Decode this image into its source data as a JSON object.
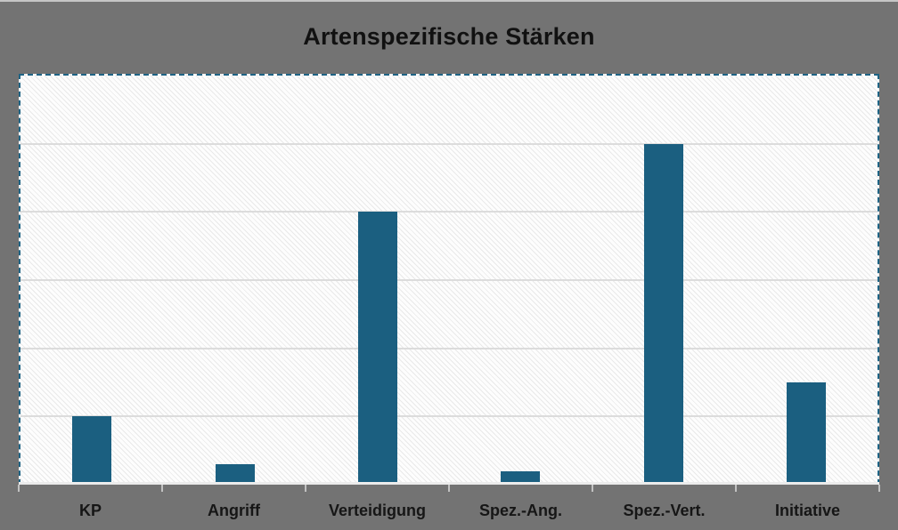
{
  "chart": {
    "title": "Artenspezifische Stärken"
  },
  "chart_data": {
    "type": "bar",
    "title": "Artenspezifische Stärken",
    "categories": [
      "KP",
      "Angriff",
      "Verteidigung",
      "Spez.-Ang.",
      "Spez.-Vert.",
      "Initiative"
    ],
    "values": [
      50,
      15,
      200,
      10,
      250,
      75
    ],
    "xlabel": "",
    "ylabel": "",
    "ylim": [
      0,
      300
    ],
    "gridline_step": 50,
    "grid": "horizontal-only",
    "legend_position": "none",
    "y_tick_labels_visible": false,
    "plot_fill_pattern": "diagonal-hatch",
    "selection_border": "dashed"
  },
  "colors": {
    "canvas_background": "#737373",
    "bar_fill": "#1B5F80",
    "selection_border": "#1E6384",
    "gridline": "#DCDCDC",
    "axis_line": "#ECECEC",
    "tick_mark": "#C2C2C2",
    "title_text": "#111111",
    "axis_label_text": "#161616"
  }
}
